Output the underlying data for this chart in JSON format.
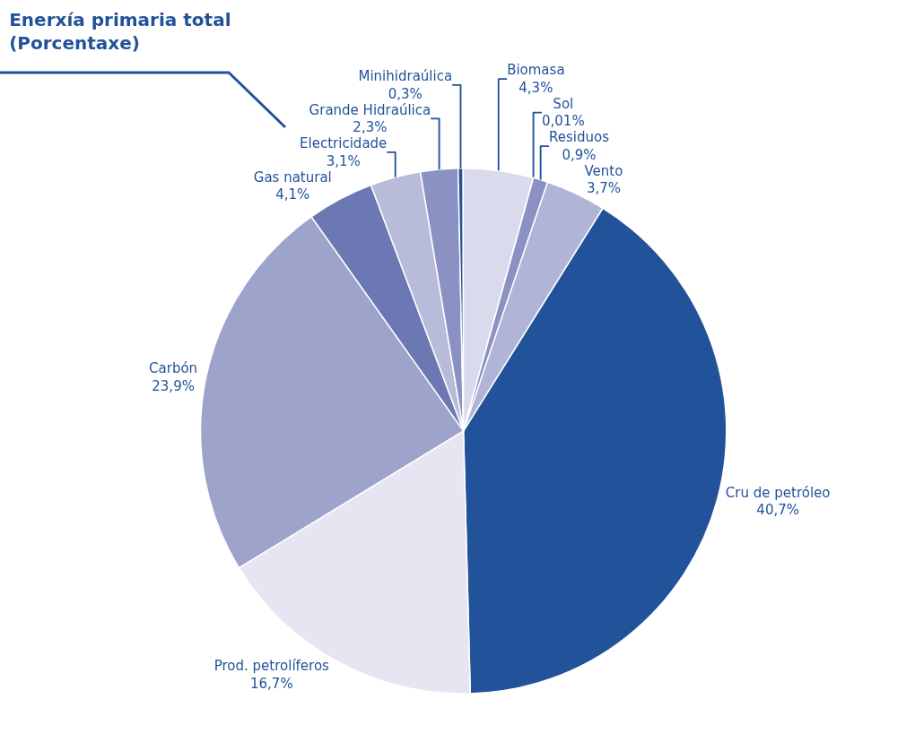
{
  "chart_data": {
    "type": "pie",
    "title": "Enerxía primaria total\n(Porcentaxe)",
    "categories": [
      "Cru de petróleo",
      "Prod. petrolíferos",
      "Carbón",
      "Gas natural",
      "Electricidade",
      "Grande Hidraúlica",
      "Minihidraúlica",
      "Biomasa",
      "Sol",
      "Residuos",
      "Vento"
    ],
    "values": [
      40.7,
      16.7,
      23.9,
      4.1,
      3.1,
      2.3,
      0.3,
      4.3,
      0.01,
      0.9,
      3.7
    ],
    "value_labels": [
      "40,7%",
      "16,7%",
      "23,9%",
      "4,1%",
      "3,1%",
      "2,3%",
      "0,3%",
      "4,3%",
      "0,01%",
      "0,9%",
      "3,7%"
    ],
    "colors": [
      "#22529a",
      "#e6e5f1",
      "#9ea3cc",
      "#6b78b3",
      "#b8bbd9",
      "#8b91c2",
      "#22529a",
      "#d9dbed",
      "#6b78b3",
      "#8b91c2",
      "#b0b4d6"
    ],
    "legend": false
  }
}
